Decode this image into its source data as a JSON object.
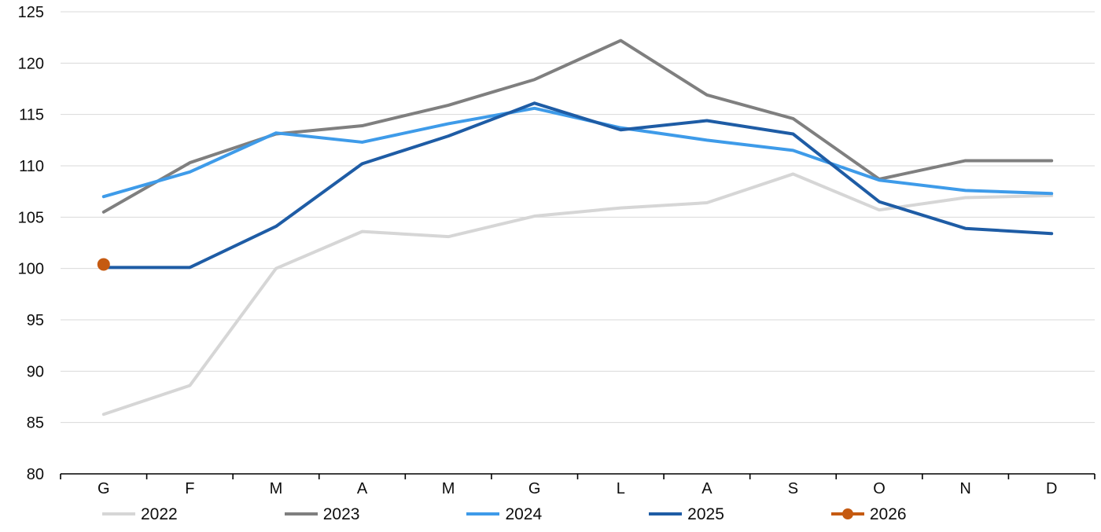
{
  "chart_data": {
    "type": "line",
    "title": "",
    "xlabel": "",
    "ylabel": "",
    "categories": [
      "G",
      "F",
      "M",
      "A",
      "M",
      "G",
      "L",
      "A",
      "S",
      "O",
      "N",
      "D"
    ],
    "y_axis": {
      "min": 80,
      "max": 125,
      "step": 5,
      "tick_labels": [
        "80",
        "85",
        "90",
        "95",
        "100",
        "105",
        "110",
        "115",
        "120",
        "125"
      ]
    },
    "grid": true,
    "gridline_color": "#d9d9d9",
    "axis_line_color": "#000000",
    "legend_position": "bottom",
    "series": [
      {
        "name": "2022",
        "color": "#d6d6d6",
        "marker": "none",
        "values": [
          85.8,
          88.6,
          100.0,
          103.6,
          103.1,
          105.1,
          105.9,
          106.4,
          109.2,
          105.7,
          106.9,
          107.1
        ]
      },
      {
        "name": "2023",
        "color": "#7f7f7f",
        "marker": "none",
        "values": [
          105.5,
          110.3,
          113.1,
          113.9,
          115.9,
          118.4,
          122.2,
          116.9,
          114.6,
          108.7,
          110.5,
          110.5
        ]
      },
      {
        "name": "2024",
        "color": "#3e9be9",
        "marker": "none",
        "values": [
          107.0,
          109.4,
          113.2,
          112.3,
          114.1,
          115.6,
          113.7,
          112.5,
          111.5,
          108.6,
          107.6,
          107.3
        ]
      },
      {
        "name": "2025",
        "color": "#1e5ca5",
        "marker": "none",
        "values": [
          100.1,
          100.1,
          104.1,
          110.2,
          112.9,
          116.1,
          113.5,
          114.4,
          113.1,
          106.5,
          103.9,
          103.4
        ]
      },
      {
        "name": "2026",
        "color": "#c55a11",
        "marker": "circle",
        "values": [
          100.4
        ]
      }
    ]
  }
}
